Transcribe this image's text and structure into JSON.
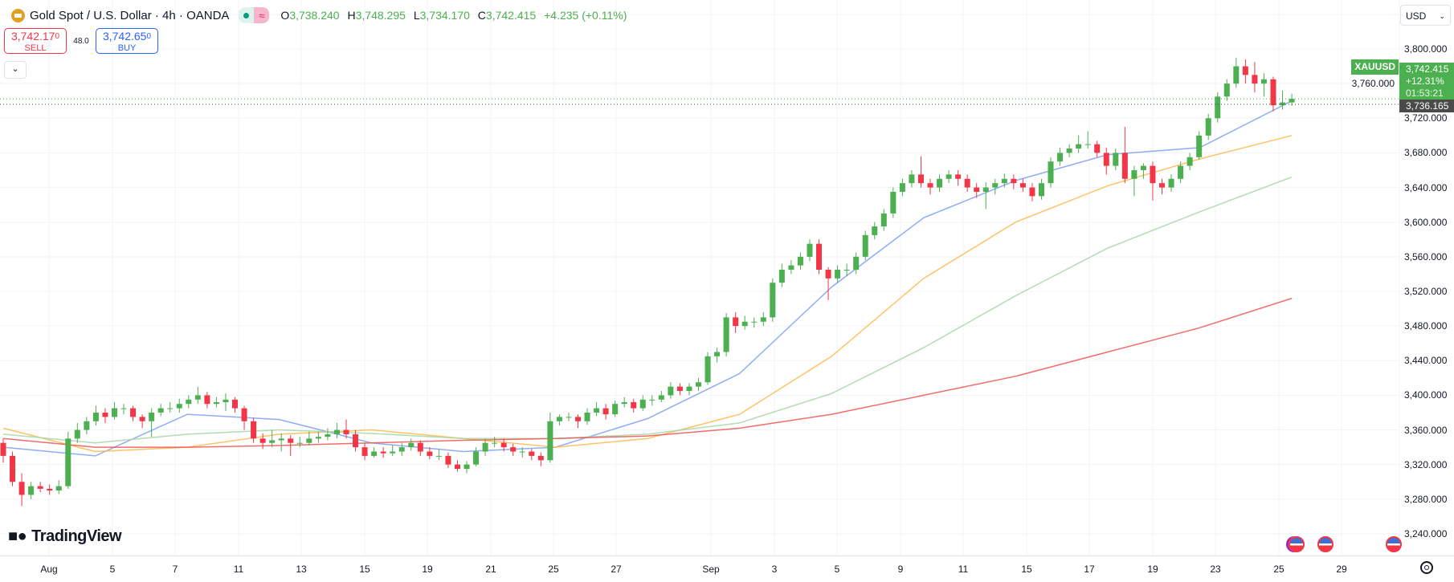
{
  "header": {
    "symbol_title": "Gold Spot / U.S. Dollar · 4h · OANDA",
    "ohlc": {
      "o_label": "O",
      "o": "3,738.240",
      "h_label": "H",
      "h": "3,748.295",
      "l_label": "L",
      "l": "3,734.170",
      "c_label": "C",
      "c": "3,742.415",
      "change": "+4.235 (+0.11%)"
    },
    "pill_icons": [
      "market-open-dot",
      "delayed-data-wave"
    ]
  },
  "trade": {
    "sell_price": "3,742.17",
    "sell_sup": "0",
    "sell_label": "SELL",
    "spread": "48.0",
    "buy_price": "3,742.65",
    "buy_sup": "0",
    "buy_label": "BUY"
  },
  "currency_select": "USD",
  "price_tags": {
    "symbol": "XAUUSD",
    "last": "3,742.415",
    "change_pct": "+12.31%",
    "countdown": "01:53:21",
    "bid": "3,736.165"
  },
  "logo_text": "TradingView",
  "colors": {
    "up": "#4caf50",
    "down": "#f23645",
    "ma1": "#7b9ef5",
    "ma2": "#ffb74d",
    "ma3": "#a5d6a7",
    "ma4": "#ef5350"
  },
  "chart_data": {
    "type": "candlestick",
    "symbol": "XAUUSD",
    "timeframe": "4h",
    "ylim": [
      3240,
      3800
    ],
    "y_ticks": [
      "3,800.000",
      "3,760.000",
      "3,720.000",
      "3,680.000",
      "3,640.000",
      "3,600.000",
      "3,560.000",
      "3,520.000",
      "3,480.000",
      "3,440.000",
      "3,400.000",
      "3,360.000",
      "3,320.000",
      "3,280.000",
      "3,240.000"
    ],
    "x_ticks": [
      "Aug",
      "5",
      "7",
      "11",
      "13",
      "15",
      "19",
      "21",
      "25",
      "27",
      "Sep",
      "3",
      "5",
      "9",
      "11",
      "15",
      "17",
      "19",
      "23",
      "25",
      "29"
    ],
    "grid": true,
    "candles_ohlc": [
      [
        3345,
        3350,
        3322,
        3330
      ],
      [
        3330,
        3335,
        3295,
        3300
      ],
      [
        3300,
        3310,
        3272,
        3285
      ],
      [
        3285,
        3300,
        3280,
        3295
      ],
      [
        3295,
        3300,
        3288,
        3292
      ],
      [
        3292,
        3297,
        3285,
        3290
      ],
      [
        3290,
        3302,
        3286,
        3295
      ],
      [
        3295,
        3358,
        3292,
        3350
      ],
      [
        3350,
        3368,
        3345,
        3360
      ],
      [
        3360,
        3375,
        3355,
        3370
      ],
      [
        3370,
        3388,
        3365,
        3380
      ],
      [
        3380,
        3385,
        3368,
        3375
      ],
      [
        3375,
        3392,
        3372,
        3385
      ],
      [
        3385,
        3390,
        3378,
        3385
      ],
      [
        3385,
        3388,
        3370,
        3375
      ],
      [
        3375,
        3378,
        3362,
        3370
      ],
      [
        3370,
        3385,
        3352,
        3380
      ],
      [
        3380,
        3390,
        3376,
        3385
      ],
      [
        3385,
        3392,
        3380,
        3385
      ],
      [
        3385,
        3396,
        3380,
        3390
      ],
      [
        3390,
        3400,
        3385,
        3395
      ],
      [
        3395,
        3410,
        3390,
        3400
      ],
      [
        3400,
        3404,
        3385,
        3390
      ],
      [
        3390,
        3398,
        3386,
        3392
      ],
      [
        3392,
        3402,
        3382,
        3395
      ],
      [
        3395,
        3398,
        3380,
        3385
      ],
      [
        3385,
        3388,
        3360,
        3370
      ],
      [
        3370,
        3374,
        3345,
        3350
      ],
      [
        3350,
        3356,
        3338,
        3345
      ],
      [
        3345,
        3360,
        3340,
        3348
      ],
      [
        3348,
        3356,
        3335,
        3350
      ],
      [
        3350,
        3354,
        3330,
        3345
      ],
      [
        3345,
        3352,
        3340,
        3345
      ],
      [
        3345,
        3358,
        3342,
        3350
      ],
      [
        3350,
        3358,
        3345,
        3352
      ],
      [
        3352,
        3362,
        3348,
        3355
      ],
      [
        3355,
        3368,
        3350,
        3360
      ],
      [
        3360,
        3372,
        3350,
        3355
      ],
      [
        3355,
        3360,
        3335,
        3340
      ],
      [
        3340,
        3345,
        3325,
        3330
      ],
      [
        3330,
        3340,
        3328,
        3335
      ],
      [
        3335,
        3340,
        3328,
        3333
      ],
      [
        3333,
        3342,
        3330,
        3335
      ],
      [
        3335,
        3345,
        3330,
        3340
      ],
      [
        3340,
        3350,
        3336,
        3345
      ],
      [
        3345,
        3348,
        3330,
        3335
      ],
      [
        3335,
        3340,
        3326,
        3330
      ],
      [
        3330,
        3338,
        3325,
        3330
      ],
      [
        3330,
        3334,
        3316,
        3320
      ],
      [
        3320,
        3325,
        3312,
        3315
      ],
      [
        3315,
        3324,
        3310,
        3320
      ],
      [
        3320,
        3340,
        3318,
        3335
      ],
      [
        3335,
        3350,
        3330,
        3345
      ],
      [
        3345,
        3352,
        3340,
        3345
      ],
      [
        3345,
        3350,
        3335,
        3340
      ],
      [
        3340,
        3344,
        3330,
        3335
      ],
      [
        3335,
        3340,
        3328,
        3335
      ],
      [
        3335,
        3338,
        3325,
        3330
      ],
      [
        3330,
        3334,
        3318,
        3325
      ],
      [
        3325,
        3380,
        3322,
        3370
      ],
      [
        3370,
        3378,
        3365,
        3375
      ],
      [
        3375,
        3380,
        3370,
        3375
      ],
      [
        3375,
        3378,
        3362,
        3370
      ],
      [
        3370,
        3385,
        3366,
        3380
      ],
      [
        3380,
        3392,
        3376,
        3385
      ],
      [
        3385,
        3390,
        3372,
        3378
      ],
      [
        3378,
        3394,
        3375,
        3390
      ],
      [
        3390,
        3398,
        3386,
        3392
      ],
      [
        3392,
        3396,
        3380,
        3385
      ],
      [
        3385,
        3400,
        3382,
        3395
      ],
      [
        3395,
        3400,
        3388,
        3395
      ],
      [
        3395,
        3405,
        3392,
        3400
      ],
      [
        3400,
        3415,
        3396,
        3410
      ],
      [
        3410,
        3414,
        3400,
        3405
      ],
      [
        3405,
        3414,
        3400,
        3410
      ],
      [
        3410,
        3420,
        3405,
        3415
      ],
      [
        3415,
        3450,
        3412,
        3445
      ],
      [
        3445,
        3455,
        3438,
        3450
      ],
      [
        3450,
        3495,
        3445,
        3490
      ],
      [
        3490,
        3496,
        3472,
        3480
      ],
      [
        3480,
        3492,
        3476,
        3485
      ],
      [
        3485,
        3490,
        3478,
        3485
      ],
      [
        3485,
        3496,
        3480,
        3490
      ],
      [
        3490,
        3535,
        3485,
        3530
      ],
      [
        3530,
        3552,
        3525,
        3545
      ],
      [
        3545,
        3556,
        3540,
        3550
      ],
      [
        3550,
        3565,
        3545,
        3560
      ],
      [
        3560,
        3580,
        3555,
        3575
      ],
      [
        3575,
        3580,
        3540,
        3545
      ],
      [
        3545,
        3548,
        3510,
        3535
      ],
      [
        3535,
        3550,
        3530,
        3545
      ],
      [
        3545,
        3552,
        3538,
        3545
      ],
      [
        3545,
        3565,
        3540,
        3560
      ],
      [
        3560,
        3590,
        3556,
        3585
      ],
      [
        3585,
        3600,
        3580,
        3595
      ],
      [
        3595,
        3615,
        3590,
        3610
      ],
      [
        3610,
        3640,
        3605,
        3635
      ],
      [
        3635,
        3650,
        3630,
        3645
      ],
      [
        3645,
        3660,
        3640,
        3655
      ],
      [
        3655,
        3676,
        3640,
        3645
      ],
      [
        3645,
        3650,
        3632,
        3640
      ],
      [
        3640,
        3655,
        3635,
        3650
      ],
      [
        3650,
        3660,
        3645,
        3655
      ],
      [
        3655,
        3660,
        3642,
        3650
      ],
      [
        3650,
        3655,
        3635,
        3640
      ],
      [
        3640,
        3645,
        3628,
        3635
      ],
      [
        3635,
        3646,
        3615,
        3640
      ],
      [
        3640,
        3650,
        3632,
        3645
      ],
      [
        3645,
        3656,
        3640,
        3650
      ],
      [
        3650,
        3655,
        3638,
        3645
      ],
      [
        3645,
        3650,
        3635,
        3640
      ],
      [
        3640,
        3645,
        3624,
        3630
      ],
      [
        3630,
        3650,
        3626,
        3645
      ],
      [
        3645,
        3675,
        3640,
        3670
      ],
      [
        3670,
        3686,
        3665,
        3680
      ],
      [
        3680,
        3690,
        3675,
        3685
      ],
      [
        3685,
        3700,
        3680,
        3690
      ],
      [
        3690,
        3705,
        3685,
        3690
      ],
      [
        3690,
        3694,
        3675,
        3680
      ],
      [
        3680,
        3686,
        3655,
        3665
      ],
      [
        3665,
        3685,
        3660,
        3680
      ],
      [
        3680,
        3710,
        3645,
        3650
      ],
      [
        3650,
        3665,
        3630,
        3660
      ],
      [
        3660,
        3668,
        3650,
        3665
      ],
      [
        3665,
        3670,
        3625,
        3645
      ],
      [
        3645,
        3650,
        3632,
        3640
      ],
      [
        3640,
        3655,
        3635,
        3650
      ],
      [
        3650,
        3670,
        3645,
        3665
      ],
      [
        3665,
        3680,
        3660,
        3675
      ],
      [
        3675,
        3705,
        3672,
        3700
      ],
      [
        3700,
        3725,
        3695,
        3720
      ],
      [
        3720,
        3750,
        3715,
        3745
      ],
      [
        3745,
        3765,
        3740,
        3760
      ],
      [
        3760,
        3790,
        3755,
        3780
      ],
      [
        3780,
        3788,
        3760,
        3770
      ],
      [
        3770,
        3785,
        3750,
        3760
      ],
      [
        3760,
        3772,
        3745,
        3765
      ],
      [
        3765,
        3768,
        3728,
        3735
      ],
      [
        3735,
        3752,
        3730,
        3738.24
      ],
      [
        3738.24,
        3748.295,
        3734.17,
        3742.415
      ]
    ],
    "moving_averages": [
      {
        "color_key": "ma1",
        "values": [
          3340,
          3330,
          3378,
          3372,
          3345,
          3335,
          3340,
          3373,
          3425,
          3525,
          3605,
          3648,
          3678,
          3686,
          3740
        ]
      },
      {
        "color_key": "ma2",
        "values": [
          3362,
          3335,
          3340,
          3355,
          3360,
          3350,
          3340,
          3350,
          3378,
          3445,
          3535,
          3600,
          3642,
          3673,
          3700
        ]
      },
      {
        "color_key": "ma3",
        "values": [
          3355,
          3345,
          3355,
          3360,
          3356,
          3350,
          3350,
          3355,
          3368,
          3402,
          3455,
          3515,
          3570,
          3612,
          3652
        ]
      },
      {
        "color_key": "ma4",
        "values": [
          3350,
          3340,
          3340,
          3342,
          3345,
          3348,
          3350,
          3353,
          3362,
          3378,
          3400,
          3422,
          3450,
          3478,
          3512
        ]
      }
    ],
    "last_price": 3742.415,
    "bid_line": 3736.165
  }
}
